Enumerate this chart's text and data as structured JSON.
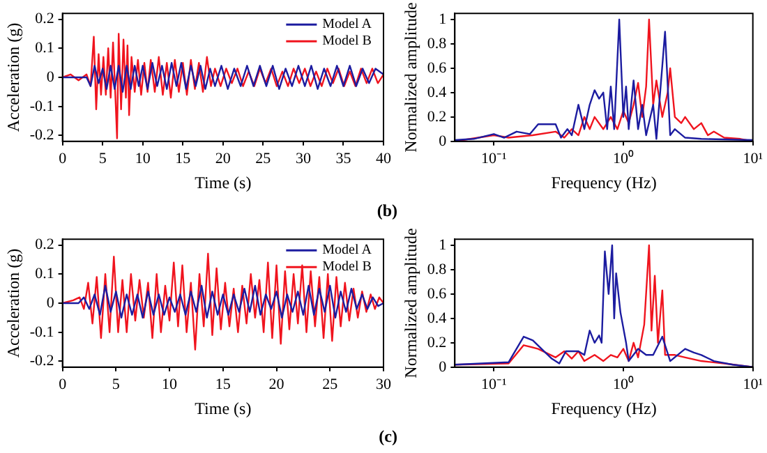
{
  "chart_data": [
    {
      "type": "line",
      "xlabel": "Time (s)",
      "ylabel": "Acceleration (g)",
      "xlim": [
        0,
        40
      ],
      "xticks": [
        0,
        5,
        10,
        15,
        20,
        25,
        30,
        35,
        40
      ],
      "ylim": [
        -0.22,
        0.22
      ],
      "yticks": [
        -0.2,
        -0.1,
        0,
        0.1,
        0.2
      ],
      "legend": "top right",
      "annotations": [
        "(b)"
      ],
      "series": [
        {
          "name": "Model A",
          "color": "#1c1ca0",
          "x": [
            0,
            3,
            3.5,
            4,
            4.5,
            5,
            5.5,
            6,
            6.5,
            7,
            7.5,
            8,
            8.5,
            9,
            9.5,
            10,
            10.6,
            11.2,
            11.8,
            12.4,
            13,
            13.6,
            14.2,
            14.8,
            15.4,
            16,
            16.6,
            17.2,
            17.8,
            18.4,
            19,
            19.8,
            20.6,
            21.4,
            22.2,
            23,
            23.8,
            24.6,
            25.4,
            26.2,
            27,
            27.8,
            28.6,
            29.4,
            30.2,
            31,
            31.8,
            32.6,
            33.4,
            34.2,
            35,
            35.8,
            36.6,
            37.4,
            38.2,
            39,
            40
          ],
          "values": [
            0,
            0,
            -0.03,
            0.04,
            -0.02,
            0.03,
            -0.04,
            0.04,
            -0.04,
            0.04,
            -0.05,
            0.04,
            -0.04,
            0.04,
            -0.03,
            0.04,
            -0.04,
            0.05,
            -0.03,
            0.04,
            -0.04,
            0.05,
            -0.03,
            0.05,
            -0.04,
            0.04,
            -0.03,
            0.04,
            -0.04,
            0.03,
            -0.03,
            0.04,
            -0.04,
            0.03,
            -0.03,
            0.04,
            -0.03,
            0.04,
            -0.03,
            0.04,
            -0.04,
            0.03,
            -0.03,
            0.04,
            -0.03,
            0.04,
            -0.04,
            0.03,
            -0.03,
            0.04,
            -0.03,
            0.04,
            -0.03,
            0.03,
            -0.02,
            0.03,
            0.01
          ]
        },
        {
          "name": "Model B",
          "color": "#f0141e",
          "x": [
            0,
            1,
            2,
            3,
            3.5,
            3.9,
            4.2,
            4.5,
            4.8,
            5.1,
            5.4,
            5.7,
            6,
            6.3,
            6.6,
            6.8,
            7,
            7.3,
            7.6,
            7.9,
            8.1,
            8.3,
            8.6,
            9,
            9.4,
            9.8,
            10.2,
            10.6,
            11,
            11.5,
            12,
            12.5,
            13,
            13.5,
            14,
            14.5,
            15,
            15.5,
            16,
            16.5,
            17,
            17.5,
            18,
            18.5,
            19,
            19.7,
            20.4,
            21.1,
            21.8,
            22.5,
            23.2,
            23.9,
            24.6,
            25.3,
            26,
            26.7,
            27.4,
            28.1,
            28.8,
            29.5,
            30.2,
            30.9,
            31.6,
            32.3,
            33,
            33.7,
            34.4,
            35.1,
            35.8,
            36.5,
            37.2,
            37.9,
            38.6,
            39.3,
            40
          ],
          "values": [
            0,
            0.01,
            -0.01,
            0.01,
            -0.03,
            0.14,
            -0.11,
            0.08,
            -0.06,
            0.07,
            -0.06,
            0.1,
            -0.07,
            0.12,
            -0.07,
            -0.21,
            0.15,
            -0.11,
            0.13,
            -0.07,
            0.11,
            -0.13,
            0.07,
            -0.05,
            0.06,
            -0.06,
            0.05,
            -0.05,
            0.06,
            -0.05,
            0.07,
            -0.06,
            0.05,
            -0.07,
            0.06,
            -0.05,
            0.05,
            -0.06,
            0.06,
            -0.04,
            0.05,
            -0.05,
            0.07,
            -0.03,
            0.03,
            -0.03,
            0.03,
            -0.02,
            0.03,
            -0.03,
            0.02,
            -0.03,
            0.03,
            -0.02,
            0.03,
            -0.03,
            0.02,
            -0.03,
            0.03,
            -0.02,
            0.03,
            -0.03,
            0.02,
            -0.03,
            0.03,
            -0.02,
            0.03,
            -0.03,
            0.02,
            -0.03,
            0.03,
            -0.02,
            0.03,
            -0.02,
            0.01
          ]
        }
      ]
    },
    {
      "type": "line",
      "xlabel": "Frequency (Hz)",
      "ylabel": "Normalized amplitude",
      "log": "x",
      "xlim": [
        0.05,
        10
      ],
      "xticks": [
        {
          "value": 0.1,
          "label": "10⁻¹"
        },
        {
          "value": 1,
          "label": "10⁰"
        },
        {
          "value": 10,
          "label": "10¹"
        }
      ],
      "ylim": [
        0,
        1.05
      ],
      "yticks": [
        0,
        0.2,
        0.4,
        0.6,
        0.8,
        1
      ],
      "series": [
        {
          "color": "#1c1ca0",
          "x": [
            0.05,
            0.07,
            0.1,
            0.12,
            0.15,
            0.19,
            0.22,
            0.3,
            0.33,
            0.37,
            0.4,
            0.45,
            0.5,
            0.55,
            0.6,
            0.65,
            0.7,
            0.75,
            0.8,
            0.85,
            0.93,
            1.0,
            1.05,
            1.1,
            1.2,
            1.3,
            1.4,
            1.5,
            1.7,
            1.8,
            2.1,
            2.3,
            2.5,
            3,
            4,
            10
          ],
          "values": [
            0.01,
            0.02,
            0.06,
            0.03,
            0.08,
            0.06,
            0.14,
            0.14,
            0.03,
            0.1,
            0.05,
            0.3,
            0.1,
            0.3,
            0.42,
            0.35,
            0.4,
            0.1,
            0.45,
            0.1,
            1.0,
            0.2,
            0.45,
            0.1,
            0.5,
            0.1,
            0.3,
            0.05,
            0.3,
            0.02,
            0.9,
            0.05,
            0.1,
            0.03,
            0.02,
            0.01
          ]
        },
        {
          "color": "#f0141e",
          "x": [
            0.05,
            0.1,
            0.13,
            0.2,
            0.3,
            0.35,
            0.4,
            0.45,
            0.5,
            0.55,
            0.6,
            0.7,
            0.8,
            0.9,
            1.0,
            1.1,
            1.2,
            1.3,
            1.4,
            1.5,
            1.58,
            1.7,
            1.8,
            2.0,
            2.2,
            2.3,
            2.5,
            2.8,
            3,
            3.5,
            4,
            4.5,
            5,
            6,
            8,
            10
          ],
          "values": [
            0,
            0.05,
            0.03,
            0.05,
            0.08,
            0.03,
            0.1,
            0.05,
            0.2,
            0.1,
            0.2,
            0.1,
            0.2,
            0.1,
            0.25,
            0.15,
            0.3,
            0.48,
            0.2,
            0.45,
            1.0,
            0.3,
            0.5,
            0.2,
            0.4,
            0.6,
            0.2,
            0.15,
            0.2,
            0.1,
            0.15,
            0.05,
            0.08,
            0.03,
            0.02,
            0
          ]
        }
      ]
    },
    {
      "type": "line",
      "xlabel": "Time (s)",
      "ylabel": "Acceleration (g)",
      "xlim": [
        0,
        30
      ],
      "xticks": [
        0,
        5,
        10,
        15,
        20,
        25,
        30
      ],
      "ylim": [
        -0.22,
        0.22
      ],
      "yticks": [
        -0.2,
        -0.1,
        0,
        0.1,
        0.2
      ],
      "legend": "top right",
      "annotations": [
        "(c)"
      ],
      "series": [
        {
          "name": "Model A",
          "color": "#1c1ca0",
          "x": [
            0,
            1.5,
            2,
            2.5,
            3,
            3.5,
            4,
            4.5,
            5,
            5.5,
            6,
            6.5,
            7,
            7.5,
            8,
            8.5,
            9,
            9.5,
            10,
            10.5,
            11,
            11.5,
            12,
            12.5,
            13,
            13.5,
            14,
            14.5,
            15,
            15.5,
            16,
            16.5,
            17,
            17.5,
            18,
            18.5,
            19,
            19.5,
            20,
            20.5,
            21,
            21.5,
            22,
            22.5,
            23,
            23.5,
            24,
            24.5,
            25,
            25.5,
            26,
            26.5,
            27,
            27.5,
            28,
            28.5,
            29,
            29.5,
            30
          ],
          "values": [
            0,
            0,
            0.02,
            -0.02,
            0.03,
            -0.04,
            0.06,
            -0.03,
            0.04,
            -0.05,
            0.03,
            -0.04,
            0.03,
            -0.05,
            0.04,
            -0.04,
            0.03,
            -0.04,
            0.02,
            -0.03,
            0.03,
            -0.04,
            0.04,
            -0.03,
            0.06,
            -0.05,
            0.04,
            -0.04,
            0.03,
            -0.04,
            0.03,
            -0.03,
            0.05,
            -0.03,
            0.06,
            -0.04,
            0.03,
            -0.02,
            0.04,
            -0.05,
            0.03,
            -0.03,
            0.04,
            -0.04,
            0.06,
            -0.04,
            0.05,
            -0.03,
            0.06,
            -0.05,
            0.04,
            -0.03,
            0.05,
            -0.02,
            0.03,
            -0.02,
            0.02,
            -0.01,
            0
          ]
        },
        {
          "name": "Model B",
          "color": "#f0141e",
          "x": [
            0,
            1,
            1.6,
            2,
            2.4,
            2.8,
            3.2,
            3.6,
            4,
            4.4,
            4.8,
            5.2,
            5.6,
            6,
            6.4,
            6.8,
            7.2,
            7.6,
            8,
            8.4,
            8.8,
            9.2,
            9.6,
            10,
            10.4,
            10.8,
            11.2,
            11.6,
            12,
            12.4,
            12.8,
            13.2,
            13.6,
            14,
            14.4,
            14.8,
            15.2,
            15.6,
            16,
            16.4,
            16.8,
            17.2,
            17.6,
            18,
            18.4,
            18.8,
            19.2,
            19.6,
            20,
            20.4,
            20.8,
            21.2,
            21.6,
            22,
            22.4,
            22.8,
            23.2,
            23.6,
            24,
            24.4,
            24.8,
            25.2,
            25.6,
            26,
            26.4,
            26.8,
            27.2,
            27.6,
            28,
            28.4,
            28.8,
            29.2,
            29.6,
            30
          ],
          "values": [
            0,
            0.01,
            0.02,
            -0.02,
            0.07,
            -0.07,
            0.09,
            -0.12,
            0.1,
            -0.1,
            0.16,
            -0.1,
            0.08,
            -0.1,
            0.1,
            -0.06,
            0.08,
            -0.05,
            0.07,
            -0.12,
            0.1,
            -0.1,
            0.06,
            -0.06,
            0.14,
            -0.08,
            0.13,
            -0.1,
            0.07,
            -0.16,
            0.1,
            -0.08,
            0.17,
            -0.11,
            0.12,
            -0.09,
            0.07,
            -0.08,
            0.05,
            -0.1,
            0.06,
            -0.07,
            0.1,
            -0.05,
            0.08,
            -0.1,
            0.14,
            -0.12,
            0.13,
            -0.14,
            0.11,
            -0.09,
            0.1,
            -0.07,
            0.13,
            -0.1,
            0.11,
            -0.08,
            0.09,
            -0.12,
            0.1,
            -0.13,
            0.09,
            -0.08,
            0.07,
            -0.06,
            0.05,
            -0.05,
            0.04,
            -0.03,
            0.03,
            -0.02,
            0.02,
            0
          ]
        }
      ]
    },
    {
      "type": "line",
      "xlabel": "Frequency (Hz)",
      "ylabel": "Normalized amplitude",
      "log": "x",
      "xlim": [
        0.05,
        10
      ],
      "xticks": [
        {
          "value": 0.1,
          "label": "10⁻¹"
        },
        {
          "value": 1,
          "label": "10⁰"
        },
        {
          "value": 10,
          "label": "10¹"
        }
      ],
      "ylim": [
        0,
        1.05
      ],
      "yticks": [
        0,
        0.2,
        0.4,
        0.6,
        0.8,
        1
      ],
      "series": [
        {
          "color": "#1c1ca0",
          "x": [
            0.05,
            0.13,
            0.17,
            0.2,
            0.25,
            0.28,
            0.32,
            0.36,
            0.45,
            0.5,
            0.55,
            0.6,
            0.65,
            0.68,
            0.72,
            0.77,
            0.82,
            0.85,
            0.88,
            0.95,
            1.05,
            1.1,
            1.3,
            1.5,
            1.7,
            2.0,
            2.3,
            3,
            3.5,
            4,
            5,
            7,
            10
          ],
          "values": [
            0.02,
            0.04,
            0.25,
            0.22,
            0.12,
            0.07,
            0.03,
            0.13,
            0.13,
            0.1,
            0.3,
            0.2,
            0.26,
            0.2,
            0.95,
            0.6,
            1.0,
            0.4,
            0.77,
            0.45,
            0.2,
            0.05,
            0.15,
            0.1,
            0.1,
            0.25,
            0.05,
            0.15,
            0.12,
            0.1,
            0.05,
            0.02,
            0
          ]
        },
        {
          "color": "#f0141e",
          "x": [
            0.05,
            0.13,
            0.17,
            0.22,
            0.3,
            0.35,
            0.4,
            0.45,
            0.5,
            0.6,
            0.7,
            0.8,
            0.9,
            1.0,
            1.1,
            1.2,
            1.3,
            1.45,
            1.58,
            1.65,
            1.75,
            1.85,
            2.0,
            2.1,
            2.5,
            3,
            4,
            6,
            10
          ],
          "values": [
            0.02,
            0.03,
            0.18,
            0.15,
            0.08,
            0.13,
            0.07,
            0.13,
            0.05,
            0.1,
            0.05,
            0.1,
            0.08,
            0.15,
            0.05,
            0.2,
            0.08,
            0.35,
            1.0,
            0.3,
            0.75,
            0.2,
            0.63,
            0.1,
            0.1,
            0.08,
            0.05,
            0.03,
            0
          ]
        }
      ]
    }
  ]
}
